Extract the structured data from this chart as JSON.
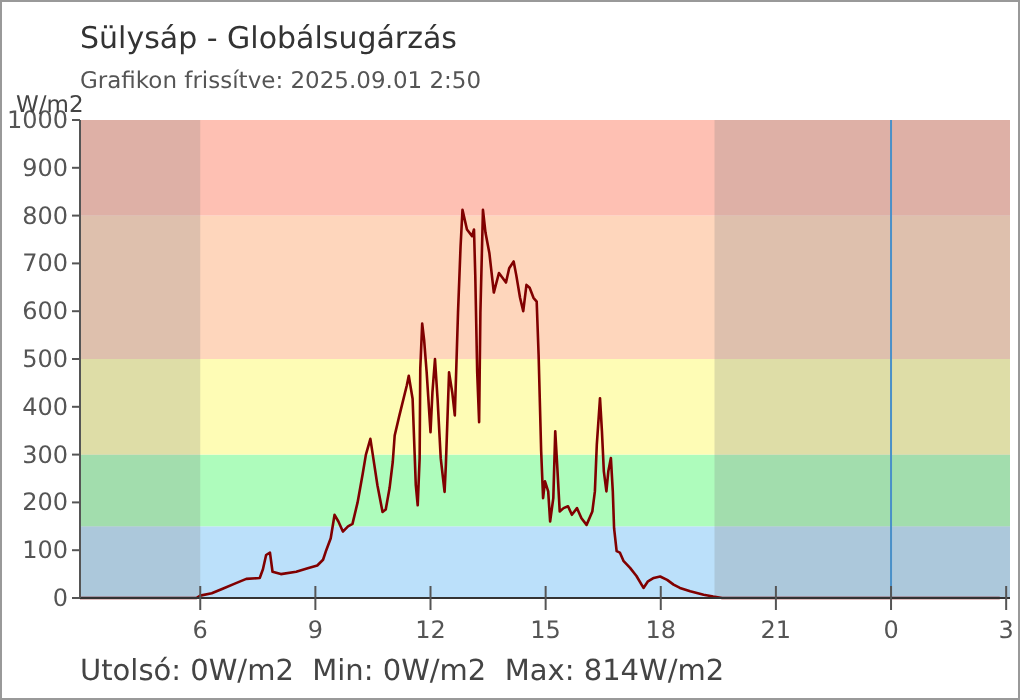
{
  "chart_data": {
    "type": "line",
    "title": "Sülysáp - Globálsugárzás",
    "subtitle": "Grafikon frissítve: 2025.09.01 2:50",
    "ylabel": "W/m2",
    "annotations": [
      "Utolsó: 0W/m2  Min: 0W/m2  Max: 814W/m2"
    ],
    "xlim": [
      "2025-08-31T02:52",
      "2025-09-01T03:06"
    ],
    "xticks": [
      {
        "value": "2025-08-31T06:00",
        "label": "6"
      },
      {
        "value": "2025-08-31T09:00",
        "label": "9"
      },
      {
        "value": "2025-08-31T12:00",
        "label": "12"
      },
      {
        "value": "2025-08-31T15:00",
        "label": "15"
      },
      {
        "value": "2025-08-31T18:00",
        "label": "18"
      },
      {
        "value": "2025-08-31T21:00",
        "label": "21"
      },
      {
        "value": "2025-09-01T00:00",
        "label": "0"
      },
      {
        "value": "2025-09-01T03:00",
        "label": "3"
      }
    ],
    "ylim": [
      0,
      1000
    ],
    "yticks": [
      0,
      100,
      200,
      300,
      400,
      500,
      600,
      700,
      800,
      900,
      1000
    ],
    "grid": false,
    "line_style": "solid",
    "bands": [
      {
        "axis": "y",
        "from": 0,
        "to": 150,
        "color": "#bbe0fa"
      },
      {
        "axis": "y",
        "from": 150,
        "to": 300,
        "color": "#aefcbc"
      },
      {
        "axis": "y",
        "from": 300,
        "to": 500,
        "color": "#fefcb5"
      },
      {
        "axis": "y",
        "from": 500,
        "to": 800,
        "color": "#fed6bc"
      },
      {
        "axis": "y",
        "from": 800,
        "to": 1000,
        "color": "#fec0b3"
      },
      {
        "axis": "x",
        "from": "2025-08-31T02:52",
        "to": "2025-08-31T06:00",
        "color": "#808080"
      },
      {
        "axis": "x",
        "from": "2025-08-31T19:24",
        "to": "2025-09-01T03:06",
        "color": "#808080"
      }
    ],
    "ref_lines": [
      {
        "axis": "x",
        "value": "2025-09-01T00:00",
        "color": "#4a90c8"
      }
    ],
    "series": [
      {
        "color": "#800000",
        "x": [
          "2025-08-31T02:52",
          "2025-08-31T05:54",
          "2025-08-31T06:00",
          "2025-08-31T06:18",
          "2025-08-31T06:36",
          "2025-08-31T06:54",
          "2025-08-31T07:12",
          "2025-08-31T07:33",
          "2025-08-31T07:38",
          "2025-08-31T07:43",
          "2025-08-31T07:49",
          "2025-08-31T07:53",
          "2025-08-31T08:06",
          "2025-08-31T08:30",
          "2025-08-31T08:48",
          "2025-08-31T09:03",
          "2025-08-31T09:12",
          "2025-08-31T09:17",
          "2025-08-31T09:24",
          "2025-08-31T09:30",
          "2025-08-31T09:36",
          "2025-08-31T09:43",
          "2025-08-31T09:51",
          "2025-08-31T09:58",
          "2025-08-31T10:06",
          "2025-08-31T10:14",
          "2025-08-31T10:19",
          "2025-08-31T10:26",
          "2025-08-31T10:32",
          "2025-08-31T10:37",
          "2025-08-31T10:45",
          "2025-08-31T10:50",
          "2025-08-31T10:56",
          "2025-08-31T11:01",
          "2025-08-31T11:04",
          "2025-08-31T11:11",
          "2025-08-31T11:23",
          "2025-08-31T11:26",
          "2025-08-31T11:32",
          "2025-08-31T11:37",
          "2025-08-31T11:40",
          "2025-08-31T11:43",
          "2025-08-31T11:44",
          "2025-08-31T11:47",
          "2025-08-31T11:50",
          "2025-08-31T11:54",
          "2025-08-31T12:00",
          "2025-08-31T12:03",
          "2025-08-31T12:07",
          "2025-08-31T12:11",
          "2025-08-31T12:16",
          "2025-08-31T12:22",
          "2025-08-31T12:24",
          "2025-08-31T12:29",
          "2025-08-31T12:34",
          "2025-08-31T12:38",
          "2025-08-31T12:43",
          "2025-08-31T12:47",
          "2025-08-31T12:50",
          "2025-08-31T12:57",
          "2025-08-31T13:05",
          "2025-08-31T13:08",
          "2025-08-31T13:10",
          "2025-08-31T13:13",
          "2025-08-31T13:16",
          "2025-08-31T13:18",
          "2025-08-31T13:22",
          "2025-08-31T13:26",
          "2025-08-31T13:32",
          "2025-08-31T13:39",
          "2025-08-31T13:47",
          "2025-08-31T13:58",
          "2025-08-31T14:03",
          "2025-08-31T14:10",
          "2025-08-31T14:14",
          "2025-08-31T14:20",
          "2025-08-31T14:25",
          "2025-08-31T14:30",
          "2025-08-31T14:35",
          "2025-08-31T14:41",
          "2025-08-31T14:46",
          "2025-08-31T14:49",
          "2025-08-31T14:53",
          "2025-08-31T14:56",
          "2025-08-31T14:59",
          "2025-08-31T15:04",
          "2025-08-31T15:07",
          "2025-08-31T15:12",
          "2025-08-31T15:15",
          "2025-08-31T15:18",
          "2025-08-31T15:22",
          "2025-08-31T15:28",
          "2025-08-31T15:35",
          "2025-08-31T15:41",
          "2025-08-31T15:49",
          "2025-08-31T15:56",
          "2025-08-31T16:04",
          "2025-08-31T16:13",
          "2025-08-31T16:17",
          "2025-08-31T16:20",
          "2025-08-31T16:25",
          "2025-08-31T16:28",
          "2025-08-31T16:31",
          "2025-08-31T16:35",
          "2025-08-31T16:38",
          "2025-08-31T16:42",
          "2025-08-31T16:45",
          "2025-08-31T16:47",
          "2025-08-31T16:51",
          "2025-08-31T16:56",
          "2025-08-31T17:02",
          "2025-08-31T17:12",
          "2025-08-31T17:22",
          "2025-08-31T17:33",
          "2025-08-31T17:40",
          "2025-08-31T17:49",
          "2025-08-31T17:59",
          "2025-08-31T18:10",
          "2025-08-31T18:20",
          "2025-08-31T18:30",
          "2025-08-31T18:46",
          "2025-08-31T19:07",
          "2025-08-31T19:22",
          "2025-08-31T19:36",
          "2025-09-01T02:50"
        ],
        "values": [
          0,
          0,
          5,
          10,
          20,
          30,
          40,
          42,
          60,
          90,
          95,
          55,
          50,
          55,
          62,
          68,
          80,
          100,
          125,
          174,
          160,
          139,
          150,
          155,
          200,
          260,
          300,
          333,
          280,
          236,
          180,
          185,
          230,
          285,
          340,
          380,
          445,
          465,
          417,
          236,
          194,
          292,
          480,
          574,
          540,
          472,
          347,
          430,
          500,
          417,
          292,
          222,
          278,
          472,
          430,
          382,
          597,
          736,
          812,
          771,
          757,
          771,
          674,
          472,
          368,
          597,
          812,
          764,
          722,
          639,
          680,
          660,
          690,
          704,
          676,
          628,
          600,
          655,
          649,
          628,
          620,
          509,
          307,
          209,
          244,
          223,
          160,
          209,
          349,
          279,
          181,
          188,
          192,
          174,
          188,
          167,
          153,
          181,
          223,
          321,
          418,
          349,
          265,
          223,
          265,
          293,
          223,
          146,
          98,
          95,
          77,
          63,
          46,
          21,
          35,
          42,
          45,
          38,
          28,
          21,
          14,
          7,
          3,
          0,
          0
        ]
      }
    ]
  }
}
